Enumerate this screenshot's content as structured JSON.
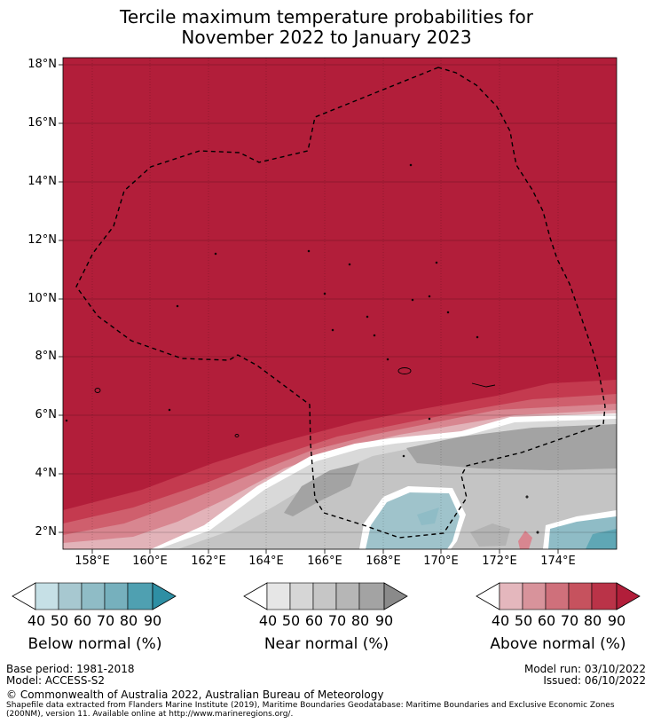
{
  "title_line1": "Tercile maximum temperature probabilities for",
  "title_line2": "November 2022 to January 2023",
  "map": {
    "lat_labels": [
      "18°N",
      "16°N",
      "14°N",
      "12°N",
      "10°N",
      "8°N",
      "6°N",
      "4°N",
      "2°N"
    ],
    "lon_labels": [
      "158°E",
      "160°E",
      "162°E",
      "164°E",
      "166°E",
      "168°E",
      "170°E",
      "172°E",
      "174°E"
    ],
    "colors": {
      "above_90": "#b21e3a",
      "above_80": "#c43a4f",
      "above_70": "#cf5f6d",
      "above_60": "#d88690",
      "above_50": "#e2b3b9",
      "near_90": "#a3a3a3",
      "near_80": "#b3b3b3",
      "near_70": "#c4c4c4",
      "near_50": "#d9d9d9",
      "below_60": "#9fc3cb",
      "below_80": "#5fa7b5"
    }
  },
  "legends": {
    "ticks": [
      "40",
      "50",
      "60",
      "70",
      "80",
      "90"
    ],
    "below": {
      "label": "Below normal (%)",
      "colors": [
        "#c6e0e6",
        "#a7c8d0",
        "#8fbcc6",
        "#76b0bd",
        "#4fa0b1",
        "#2e8fa4"
      ]
    },
    "near": {
      "label": "Near normal (%)",
      "colors": [
        "#e6e6e6",
        "#d6d6d6",
        "#c6c6c6",
        "#b6b6b6",
        "#a3a3a3",
        "#8a8a8a"
      ]
    },
    "above": {
      "label": "Above normal (%)",
      "colors": [
        "#e4b7bd",
        "#d8939b",
        "#cf707b",
        "#c6525e",
        "#ba3348",
        "#b21e3a"
      ]
    }
  },
  "footer": {
    "base_period": "Base period: 1981-2018",
    "model": "Model: ACCESS-S2",
    "model_run": "Model run: 03/10/2022",
    "issued": "Issued: 06/10/2022",
    "copyright": "© Commonwealth of Australia 2022, Australian Bureau of Meteorology",
    "shapefile_1": "Shapefile data extracted from Flanders Marine Institute (2019), Maritime Boundaries Geodatabase: Maritime Boundaries and Exclusive Economic Zones",
    "shapefile_2": "(200NM), version 11. Available online at http://www.marineregions.org/."
  }
}
